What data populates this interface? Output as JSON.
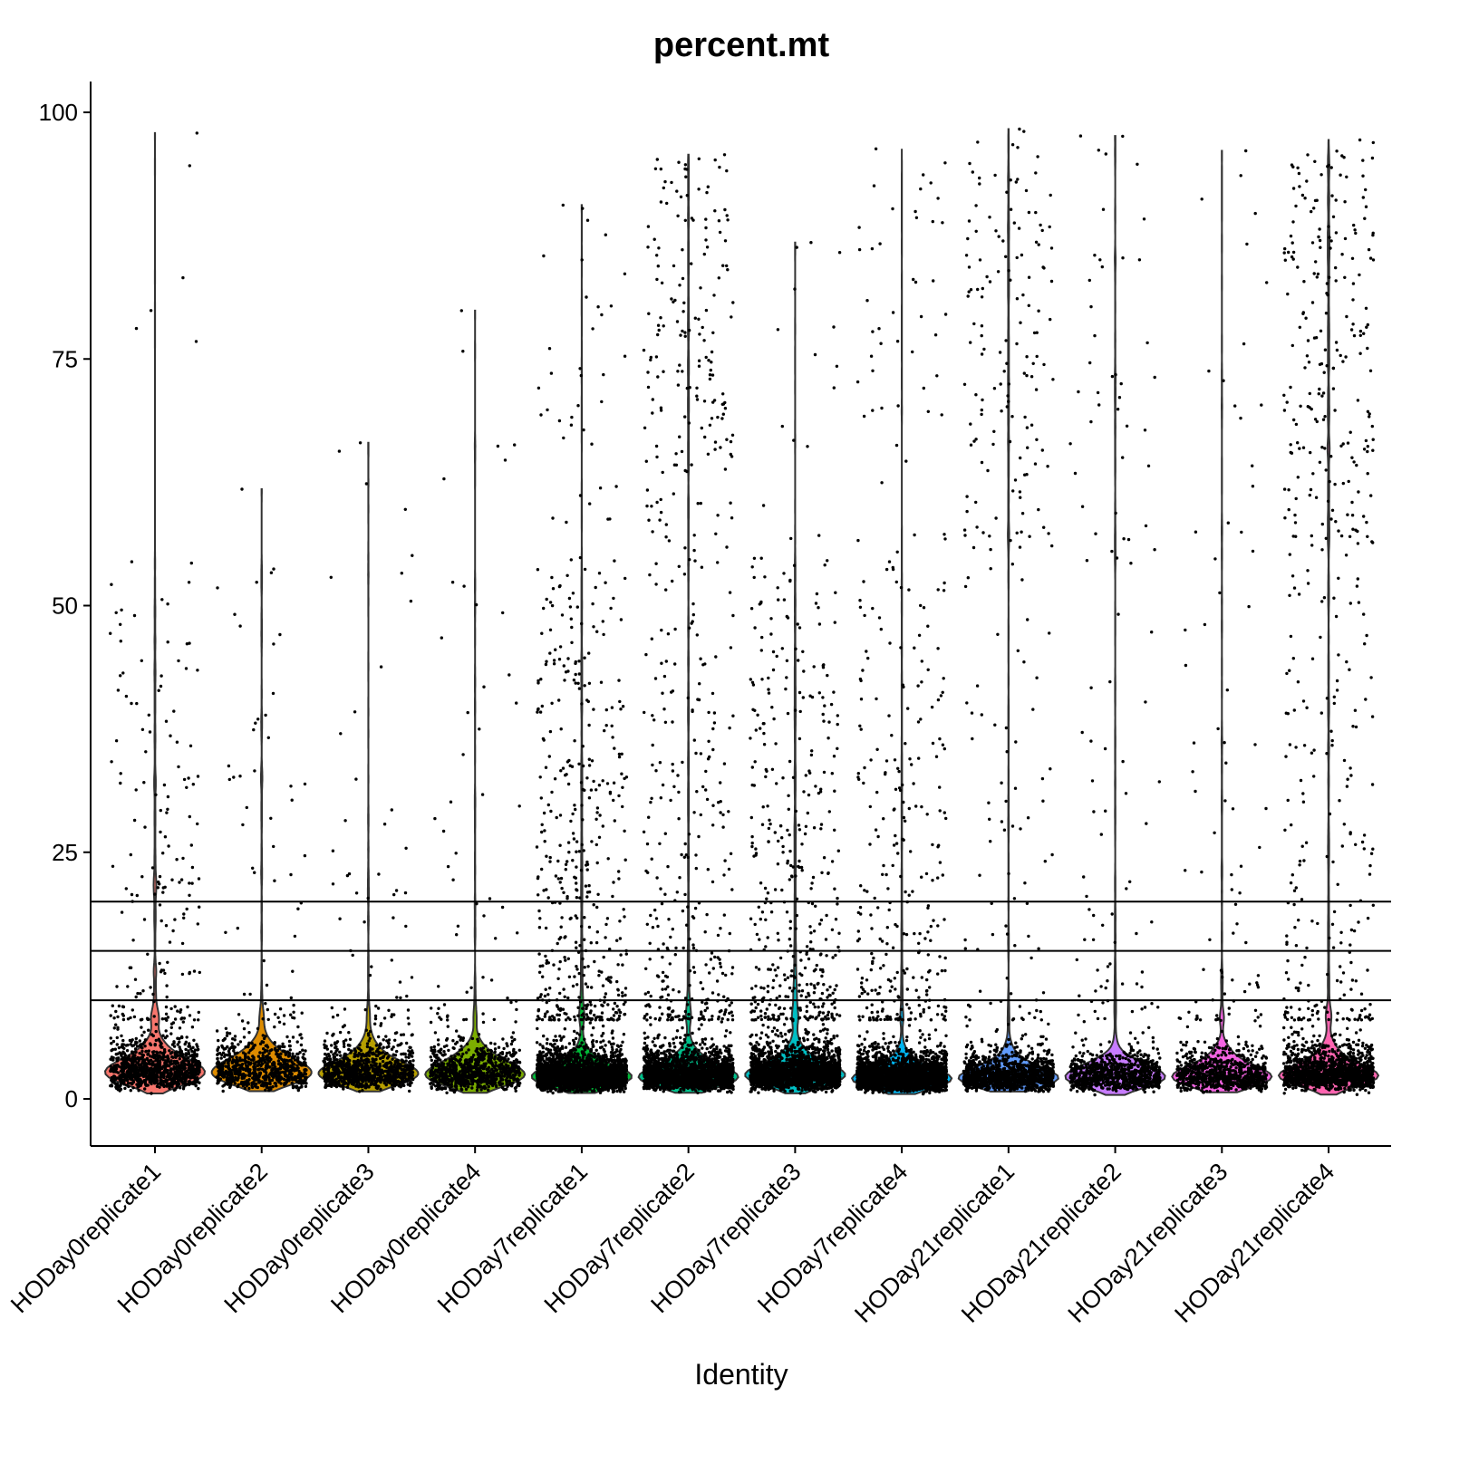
{
  "chart_data": {
    "type": "violin",
    "title": "percent.mt",
    "xlabel": "Identity",
    "ylabel": "",
    "ylim": [
      -4.8,
      103.2
    ],
    "yticks": [
      "0",
      "25",
      "50",
      "75",
      "100"
    ],
    "ytick_values": [
      0,
      25,
      50,
      75,
      100
    ],
    "hlines": [
      10,
      15,
      20
    ],
    "categories": [
      "HODay0replicate1",
      "HODay0replicate2",
      "HODay0replicate3",
      "HODay0replicate4",
      "HODay7replicate1",
      "HODay7replicate2",
      "HODay7replicate3",
      "HODay7replicate4",
      "HODay21replicate1",
      "HODay21replicate2",
      "HODay21replicate3",
      "HODay21replicate4"
    ],
    "colors": [
      "#F8766D",
      "#DE8C00",
      "#B79F00",
      "#7CAE00",
      "#00BA38",
      "#00C08B",
      "#00BFC4",
      "#00B4F0",
      "#619CFF",
      "#C77CFF",
      "#F564E3",
      "#FF64B0"
    ],
    "series": [
      {
        "name": "HODay0replicate1",
        "median": 3.0,
        "max": 97.9,
        "approx_points": 1200,
        "tail_frac": 0.12,
        "high_frac": 0.004
      },
      {
        "name": "HODay0replicate2",
        "median": 3.0,
        "max": 61.8,
        "approx_points": 800,
        "tail_frac": 0.06,
        "high_frac": 0.002
      },
      {
        "name": "HODay0replicate3",
        "median": 2.8,
        "max": 66.5,
        "approx_points": 1000,
        "tail_frac": 0.06,
        "high_frac": 0.002
      },
      {
        "name": "HODay0replicate4",
        "median": 2.6,
        "max": 79.9,
        "approx_points": 900,
        "tail_frac": 0.06,
        "high_frac": 0.003
      },
      {
        "name": "HODay7replicate1",
        "median": 2.4,
        "max": 90.6,
        "approx_points": 3000,
        "tail_frac": 0.14,
        "high_frac": 0.01
      },
      {
        "name": "HODay7replicate2",
        "median": 2.4,
        "max": 95.7,
        "approx_points": 2500,
        "tail_frac": 0.13,
        "high_frac": 0.06
      },
      {
        "name": "HODay7replicate3",
        "median": 2.6,
        "max": 86.8,
        "approx_points": 2500,
        "tail_frac": 0.16,
        "high_frac": 0.008
      },
      {
        "name": "HODay7replicate4",
        "median": 2.2,
        "max": 96.3,
        "approx_points": 3000,
        "tail_frac": 0.1,
        "high_frac": 0.015
      },
      {
        "name": "HODay21replicate1",
        "median": 2.3,
        "max": 98.3,
        "approx_points": 1500,
        "tail_frac": 0.05,
        "high_frac": 0.1
      },
      {
        "name": "HODay21replicate2",
        "median": 2.3,
        "max": 97.6,
        "approx_points": 1000,
        "tail_frac": 0.05,
        "high_frac": 0.05
      },
      {
        "name": "HODay21replicate3",
        "median": 2.4,
        "max": 96.1,
        "approx_points": 900,
        "tail_frac": 0.06,
        "high_frac": 0.025
      },
      {
        "name": "HODay21replicate4",
        "median": 2.5,
        "max": 97.2,
        "approx_points": 1800,
        "tail_frac": 0.1,
        "high_frac": 0.12
      }
    ]
  }
}
